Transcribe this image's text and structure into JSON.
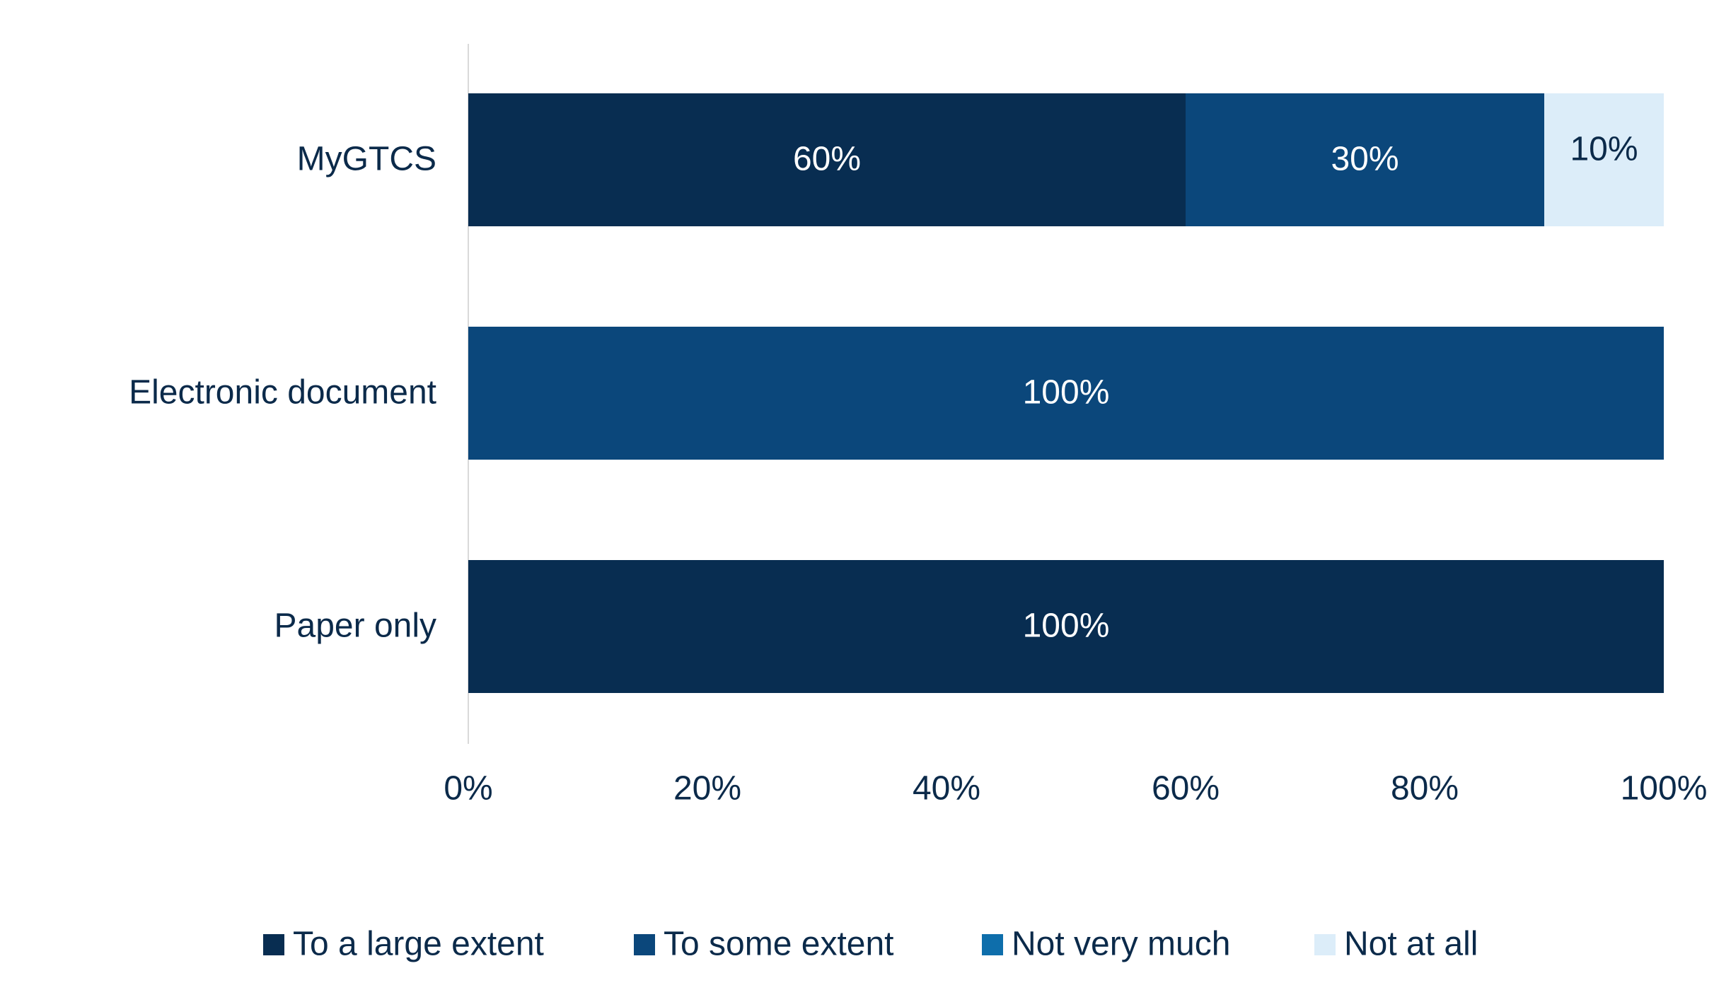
{
  "chart_data": {
    "type": "bar",
    "orientation": "horizontal",
    "stacked": true,
    "categories": [
      "MyGTCS",
      "Electronic document",
      "Paper only"
    ],
    "series": [
      {
        "name": "To a large extent",
        "color": "#082D51",
        "values": [
          60,
          0,
          100
        ]
      },
      {
        "name": "To some extent",
        "color": "#0B477B",
        "values": [
          30,
          100,
          0
        ]
      },
      {
        "name": "Not very much",
        "color": "#0E6EAB",
        "values": [
          0,
          0,
          0
        ]
      },
      {
        "name": "Not at all",
        "color": "#DCEDF9",
        "values": [
          10,
          0,
          0
        ]
      }
    ],
    "data_labels": [
      [
        "60%",
        "",
        "100%"
      ],
      [
        "30%",
        "100%",
        ""
      ],
      [
        "",
        "",
        ""
      ],
      [
        "10%",
        "",
        ""
      ]
    ],
    "x_ticks": [
      "0%",
      "20%",
      "40%",
      "60%",
      "80%",
      "100%"
    ],
    "xlim": [
      0,
      100
    ],
    "title": "",
    "xlabel": "",
    "ylabel": "",
    "grid": false,
    "legend_position": "bottom",
    "colors": {
      "text": "#0B2A4A",
      "axis": "#D9D9D9",
      "label_on_dark": "#FFFFFF",
      "label_on_light": "#0B2A4A"
    }
  }
}
